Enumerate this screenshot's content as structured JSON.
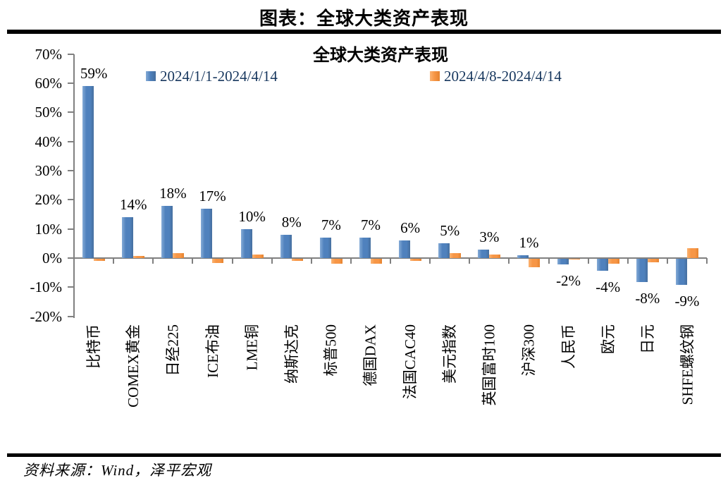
{
  "page": {
    "title": "图表：全球大类资产表现",
    "source": "资料来源：Wind，泽平宏观"
  },
  "chart_data": {
    "type": "bar",
    "title": "全球大类资产表现",
    "categories": [
      "比特币",
      "COMEX黄金",
      "日经225",
      "ICE布油",
      "LME铜",
      "纳斯达克",
      "标普500",
      "德国DAX",
      "法国CAC40",
      "美元指数",
      "英国富时100",
      "沪深300",
      "人民币",
      "欧元",
      "日元",
      "SHFE螺纹钢"
    ],
    "series": [
      {
        "name": "2024/1/1-2024/4/14",
        "color": "#4F81BD",
        "values": [
          59,
          14,
          18,
          17,
          10,
          8,
          7,
          7,
          6,
          5,
          3,
          1,
          -2,
          -4,
          -8,
          -9
        ],
        "data_labels": [
          "59%",
          "14%",
          "18%",
          "17%",
          "10%",
          "8%",
          "7%",
          "7%",
          "6%",
          "5%",
          "3%",
          "1%",
          "-2%",
          "-4%",
          "-8%",
          "-9%"
        ]
      },
      {
        "name": "2024/4/8-2024/4/14",
        "color": "#F79646",
        "values": [
          -0.8,
          0.8,
          1.6,
          -1.5,
          1.3,
          -0.8,
          -1.8,
          -1.6,
          -0.8,
          1.7,
          1.3,
          -2.8,
          -0.1,
          -1.8,
          -1.1,
          3.5
        ],
        "data_labels": []
      }
    ],
    "y_axis": {
      "min": -20,
      "max": 70,
      "step": 10,
      "tick_labels": [
        "70%",
        "60%",
        "50%",
        "40%",
        "30%",
        "20%",
        "10%",
        "0%",
        "-10%",
        "-20%"
      ]
    },
    "legend_position": "top",
    "grid": false,
    "colors": {
      "axis": "#808080",
      "legend_text": "#17375E",
      "label_text": "#000000"
    }
  }
}
